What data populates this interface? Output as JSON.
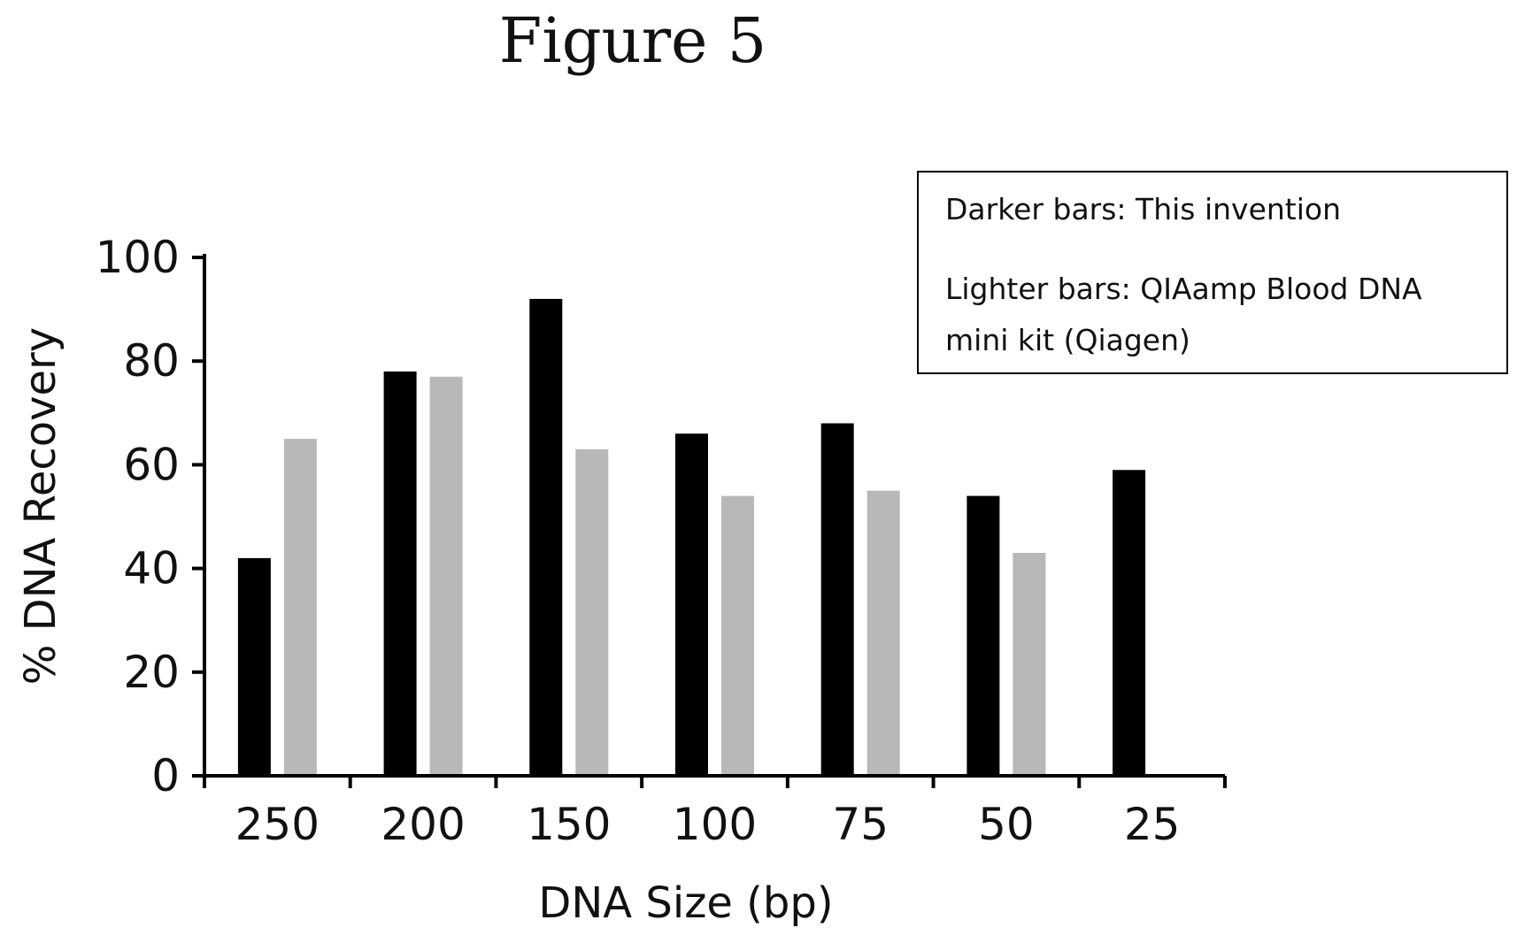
{
  "figure_title": "Figure 5",
  "legend": {
    "lines": [
      "Darker bars: This invention",
      "Lighter bars: QIAamp Blood DNA",
      "mini kit (Qiagen)"
    ]
  },
  "colors": {
    "dark_bar": "#000000",
    "light_bar": "#b8b8b8",
    "axis": "#000000"
  },
  "chart_data": {
    "type": "bar",
    "title": "Figure 5",
    "xlabel": "DNA Size (bp)",
    "ylabel": "% DNA Recovery",
    "categories": [
      "250",
      "200",
      "150",
      "100",
      "75",
      "50",
      "25"
    ],
    "series": [
      {
        "values": [
          42,
          78,
          92,
          66,
          68,
          54,
          59
        ]
      },
      {
        "values": [
          65,
          77,
          63,
          54,
          55,
          43,
          null
        ]
      }
    ],
    "yticks": [
      "0",
      "20",
      "40",
      "60",
      "80",
      "100"
    ],
    "ylim": [
      0,
      100
    ],
    "grid": false,
    "legend_position": "top-right"
  }
}
